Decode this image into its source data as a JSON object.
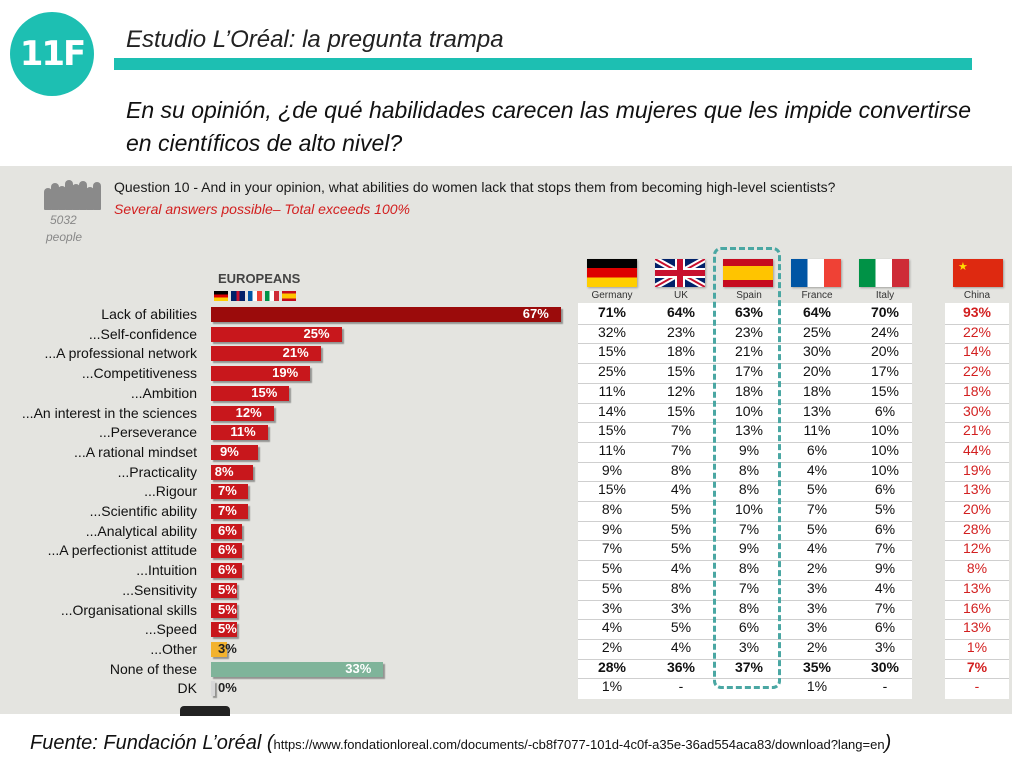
{
  "logo": {
    "text": "11F",
    "color": "#1dbfb2"
  },
  "header": {
    "title": "Estudio L’Oréal: la pregunta trampa",
    "subtitle": "En su opinión, ¿de qué habilidades carecen las mujeres que les impide convertirse en científicos de alto nivel?"
  },
  "survey": {
    "people_count": "5032",
    "people_label": "people",
    "question": "Question 10 - And in your opinion, what abilities do women lack that stops them from becoming high-level scientists?",
    "note": "Several answers possible– Total exceeds 100%",
    "europeans_label": "EUROPEANS"
  },
  "chart_data": {
    "type": "bar",
    "orientation": "horizontal",
    "categories": [
      "Lack of abilities",
      "...Self-confidence",
      "...A professional network",
      "...Competitiveness",
      "...Ambition",
      "...An interest in the sciences",
      "...Perseverance",
      "...A rational mindset",
      "...Practicality",
      "...Rigour",
      "...Scientific ability",
      "...Analytical ability",
      "...A perfectionist attitude",
      "...Intuition",
      "...Sensitivity",
      "...Organisational skills",
      "...Speed",
      "...Other",
      "None of these",
      "DK"
    ],
    "values": [
      67,
      25,
      21,
      19,
      15,
      12,
      11,
      9,
      8,
      7,
      7,
      6,
      6,
      6,
      5,
      5,
      5,
      3,
      33,
      0
    ],
    "value_labels": [
      "67%",
      "25%",
      "21%",
      "19%",
      "15%",
      "12%",
      "11%",
      "9%",
      "8%",
      "7%",
      "7%",
      "6%",
      "6%",
      "6%",
      "5%",
      "5%",
      "5%",
      "3%",
      "33%",
      "0%"
    ],
    "bar_colors": [
      "#9b0b0b",
      "#c8171c",
      "#c8171c",
      "#c8171c",
      "#c8171c",
      "#c8171c",
      "#c8171c",
      "#c8171c",
      "#c8171c",
      "#c8171c",
      "#c8171c",
      "#c8171c",
      "#c8171c",
      "#c8171c",
      "#c8171c",
      "#c8171c",
      "#c8171c",
      "#f2b22e",
      "#7fb49a",
      "#d8d8d8"
    ],
    "xlim": [
      0,
      100
    ],
    "countries": [
      {
        "name": "Germany",
        "values": [
          "71%",
          "32%",
          "15%",
          "25%",
          "11%",
          "14%",
          "15%",
          "11%",
          "9%",
          "15%",
          "8%",
          "9%",
          "7%",
          "5%",
          "5%",
          "3%",
          "4%",
          "2%",
          "28%",
          "1%"
        ]
      },
      {
        "name": "UK",
        "values": [
          "64%",
          "23%",
          "18%",
          "15%",
          "12%",
          "15%",
          "7%",
          "7%",
          "8%",
          "4%",
          "5%",
          "5%",
          "5%",
          "4%",
          "8%",
          "3%",
          "5%",
          "4%",
          "36%",
          "-"
        ]
      },
      {
        "name": "Spain",
        "values": [
          "63%",
          "23%",
          "21%",
          "17%",
          "18%",
          "10%",
          "13%",
          "9%",
          "8%",
          "8%",
          "10%",
          "7%",
          "9%",
          "8%",
          "7%",
          "8%",
          "6%",
          "3%",
          "37%",
          "-"
        ]
      },
      {
        "name": "France",
        "values": [
          "64%",
          "25%",
          "30%",
          "20%",
          "18%",
          "13%",
          "11%",
          "6%",
          "4%",
          "5%",
          "7%",
          "5%",
          "4%",
          "2%",
          "3%",
          "3%",
          "3%",
          "2%",
          "35%",
          "1%"
        ]
      },
      {
        "name": "Italy",
        "values": [
          "70%",
          "24%",
          "20%",
          "17%",
          "15%",
          "6%",
          "10%",
          "10%",
          "10%",
          "6%",
          "5%",
          "6%",
          "7%",
          "9%",
          "4%",
          "7%",
          "6%",
          "3%",
          "30%",
          "-"
        ]
      },
      {
        "name": "China",
        "values": [
          "93%",
          "22%",
          "14%",
          "22%",
          "18%",
          "30%",
          "21%",
          "44%",
          "19%",
          "13%",
          "20%",
          "28%",
          "12%",
          "8%",
          "13%",
          "16%",
          "13%",
          "1%",
          "7%",
          "-"
        ]
      }
    ],
    "bold_rows": [
      0,
      18
    ]
  },
  "source": {
    "prefix": "Fuente: Fundación L’oréal (",
    "url": "https://www.fondationloreal.com/documents/-cb8f7077-101d-4c0f-a35e-36ad554aca83/download?lang=en",
    "suffix": ")"
  }
}
